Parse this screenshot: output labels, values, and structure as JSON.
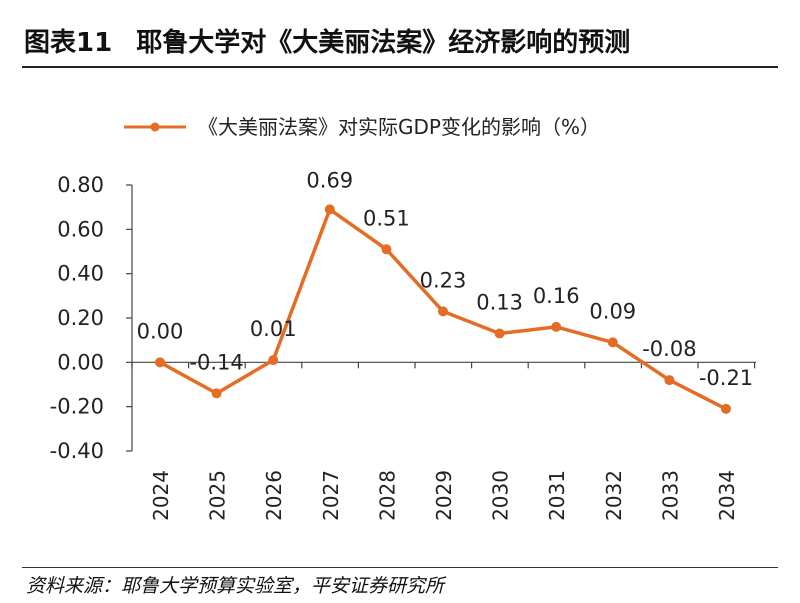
{
  "figure": {
    "label": "图表11",
    "title": "耶鲁大学对《大美丽法案》经济影响的预测"
  },
  "source": "资料来源：耶鲁大学预算实验室，平安证券研究所",
  "colors": {
    "series": "#E46C24",
    "axis": "#444444",
    "text": "#222222"
  },
  "chart_data": {
    "type": "line",
    "legend_position": "top",
    "series": [
      {
        "name": "《大美丽法案》对实际GDP变化的影响（%）",
        "color": "#E46C24",
        "values": [
          0.0,
          -0.14,
          0.01,
          0.69,
          0.51,
          0.23,
          0.13,
          0.16,
          0.09,
          -0.08,
          -0.21
        ],
        "data_labels": [
          "0.00",
          "-0.14",
          "0.01",
          "0.69",
          "0.51",
          "0.23",
          "0.13",
          "0.16",
          "0.09",
          "-0.08",
          "-0.21"
        ]
      }
    ],
    "categories": [
      "2024",
      "2025",
      "2026",
      "2027",
      "2028",
      "2029",
      "2030",
      "2031",
      "2032",
      "2033",
      "2034"
    ],
    "ylim": [
      -0.4,
      0.8
    ],
    "yticks": [
      0.8,
      0.6,
      0.4,
      0.2,
      0.0,
      -0.2,
      -0.4
    ],
    "ytick_labels": [
      "0.80",
      "0.60",
      "0.40",
      "0.20",
      "0.00",
      "-0.20",
      "-0.40"
    ],
    "grid": false
  }
}
